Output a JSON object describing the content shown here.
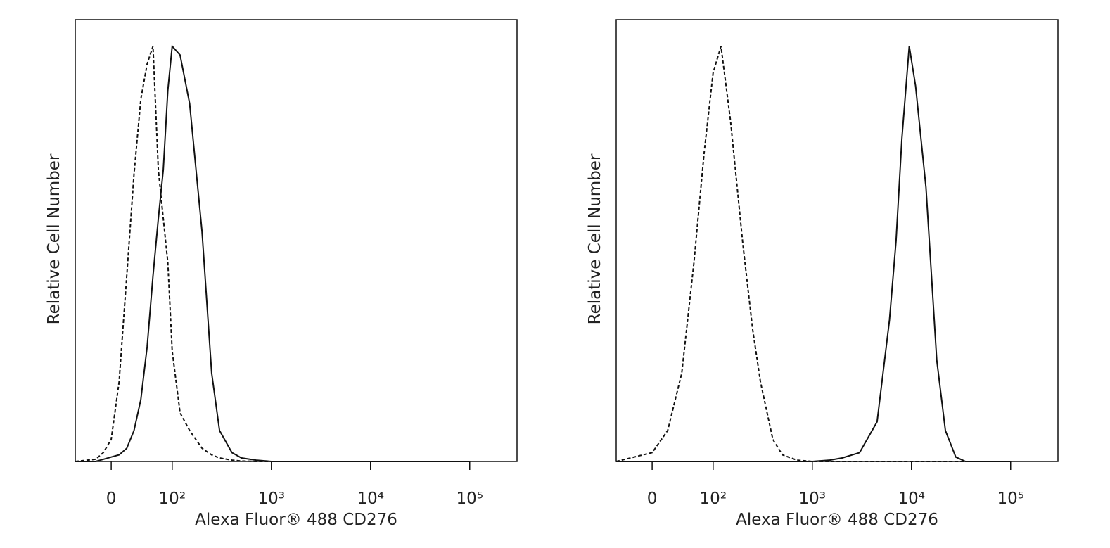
{
  "chart_data": [
    {
      "type": "line",
      "xlabel": "Alexa Fluor® 488 CD276",
      "ylabel": "Relative Cell Number",
      "xscale": "biexponential",
      "xlim": [
        -50,
        300000
      ],
      "ylim": [
        0,
        100
      ],
      "xticks": [
        0,
        {
          "value": 100,
          "label": "10²"
        },
        {
          "value": 1000,
          "label": "10³"
        },
        {
          "value": 10000,
          "label": "10⁴"
        },
        {
          "value": 100000,
          "label": "10⁵"
        }
      ],
      "x": [
        -50,
        -20,
        -10,
        0,
        10,
        20,
        30,
        40,
        50,
        60,
        70,
        80,
        90,
        100,
        120,
        150,
        200,
        250,
        300,
        400,
        500,
        700,
        1000,
        100000
      ],
      "series": [
        {
          "color": "#111111",
          "dashed": true,
          "values": [
            0,
            0.5,
            2,
            5,
            18,
            42,
            65,
            82,
            90,
            94,
            66,
            55,
            45,
            25,
            11,
            7,
            3,
            1.5,
            0.8,
            0.3,
            0.1,
            0,
            0,
            0
          ]
        },
        {
          "color": "#111111",
          "dashed": false,
          "values": [
            0,
            0,
            0.5,
            1,
            1.5,
            3,
            7,
            14,
            26,
            42,
            55,
            66,
            84,
            94,
            92,
            81,
            52,
            20,
            7,
            2,
            0.8,
            0.3,
            0,
            0
          ]
        }
      ]
    },
    {
      "type": "line",
      "xlabel": "Alexa Fluor® 488 CD276",
      "ylabel": "Relative Cell Number",
      "xscale": "biexponential",
      "xlim": [
        -50,
        300000
      ],
      "ylim": [
        0,
        100
      ],
      "xticks": [
        0,
        {
          "value": 100,
          "label": "10²"
        },
        {
          "value": 1000,
          "label": "10³"
        },
        {
          "value": 10000,
          "label": "10⁴"
        },
        {
          "value": 100000,
          "label": "10⁵"
        }
      ],
      "x": [
        -50,
        0,
        20,
        40,
        60,
        80,
        100,
        120,
        150,
        200,
        250,
        300,
        400,
        500,
        700,
        1000,
        1500,
        2000,
        3000,
        4500,
        6000,
        7000,
        8000,
        9500,
        11000,
        14000,
        18000,
        22000,
        28000,
        35000,
        100000
      ],
      "series": [
        {
          "color": "#111111",
          "dashed": true,
          "values": [
            0,
            2,
            7,
            20,
            45,
            70,
            88,
            94,
            77,
            49,
            30,
            18,
            5,
            1.5,
            0.3,
            0,
            0,
            0,
            0,
            0,
            0,
            0,
            0,
            0,
            0,
            0,
            0,
            0,
            0,
            0,
            0
          ]
        },
        {
          "color": "#111111",
          "dashed": false,
          "values": [
            0,
            0,
            0,
            0,
            0,
            0,
            0,
            0,
            0,
            0,
            0,
            0,
            0,
            0,
            0,
            0,
            0.3,
            0.8,
            2,
            9,
            32,
            50,
            73,
            94,
            85,
            62,
            23,
            7,
            1,
            0,
            0
          ]
        }
      ]
    }
  ]
}
